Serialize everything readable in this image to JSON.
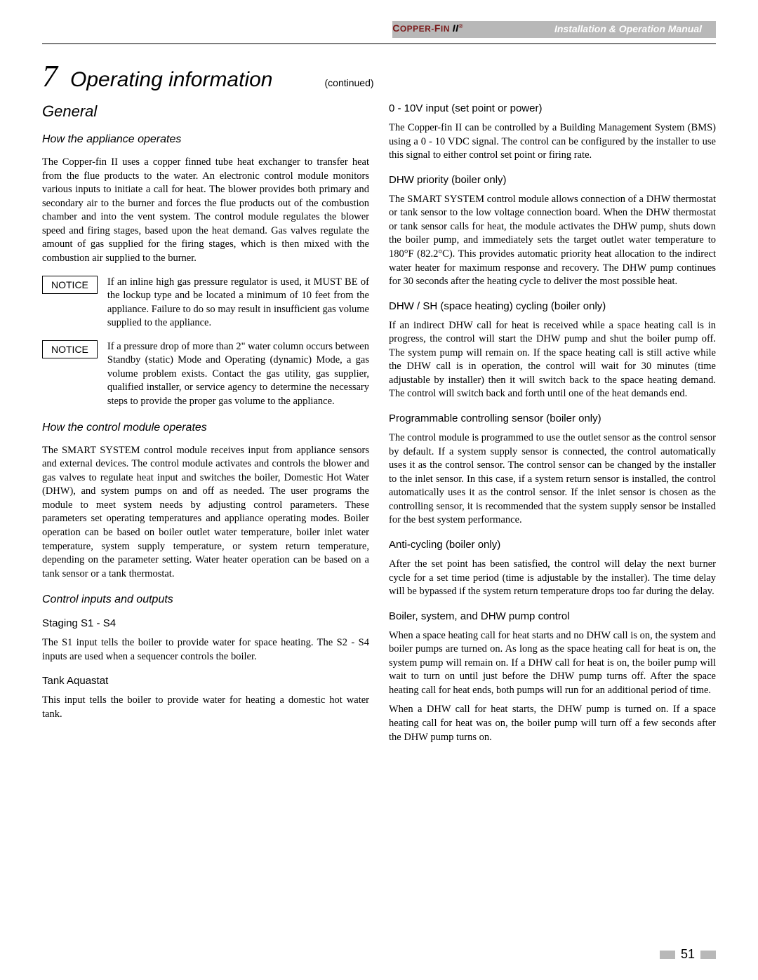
{
  "header": {
    "brand_prefix": "C",
    "brand_text": "OPPER-FIN",
    "brand_suffix": "II",
    "brand_reg": "®",
    "manual_title": "Installation & Operation Manual"
  },
  "chapter": {
    "number": "7",
    "title": "Operating information",
    "continued": "(continued)"
  },
  "left": {
    "general": "General",
    "how_operates": "How the appliance operates",
    "how_operates_body": "The Copper-fin II uses a copper finned tube heat exchanger to transfer heat from the flue products to the water.  An electronic control module monitors various inputs to initiate a call for heat.  The blower provides both primary and secondary air to the burner and forces the flue products out of the combustion chamber and into the vent system.  The control module regulates the blower speed and firing stages, based upon the heat demand.  Gas valves regulate the amount of gas supplied for the firing stages, which is then mixed with the combustion air supplied to the burner.",
    "notice": "NOTICE",
    "notice1": "If an inline high gas pressure regulator is used, it MUST BE of the lockup type and be located a minimum of 10 feet from the appliance.  Failure to do so may result in insufficient gas volume supplied to the appliance.",
    "notice2": "If a pressure drop of more than 2\" water column occurs between Standby (static) Mode and Operating (dynamic) Mode, a gas volume problem exists.  Contact the gas utility, gas supplier, qualified installer, or service agency to determine the necessary steps to provide the proper gas volume to the appliance.",
    "how_control": "How the control module operates",
    "how_control_body": "The SMART SYSTEM control module receives input from appliance sensors and external devices.  The control module activates and controls the blower and gas valves to regulate heat input and switches the boiler, Domestic Hot Water (DHW), and system pumps on and off as needed.  The user programs the module to meet system needs by adjusting control parameters.  These parameters set operating temperatures and appliance operating modes.  Boiler operation can be based on boiler outlet water temperature, boiler inlet water temperature, system supply temperature, or system return temperature, depending on the parameter setting.  Water heater operation can be based on a tank sensor or a tank thermostat.",
    "control_io": "Control inputs and outputs",
    "staging": "Staging S1 - S4",
    "staging_body": "The S1 input tells the boiler to provide water for space heating.  The S2 - S4 inputs are used when a sequencer controls the boiler.",
    "tank": "Tank Aquastat",
    "tank_body": "This input tells the boiler to provide water for heating a domestic hot water tank."
  },
  "right": {
    "v10": "0 - 10V input (set point or power)",
    "v10_body": "The Copper-fin II can be controlled by a Building Management System (BMS) using a 0 - 10 VDC signal.  The control can be configured by the installer to use this signal to either control set point or firing rate.",
    "dhw_priority": "DHW priority (boiler only)",
    "dhw_priority_body": "The SMART SYSTEM control module allows connection of a DHW thermostat or tank sensor to the low voltage connection board.  When the DHW thermostat or tank sensor calls for heat, the module activates the DHW pump, shuts down the boiler pump,  and immediately sets the target outlet water temperature to 180°F (82.2°C).  This provides automatic priority heat allocation to the indirect water heater for maximum response and recovery.  The DHW pump continues for 30 seconds after the heating cycle to deliver the most possible heat.",
    "dhw_sh": "DHW / SH (space heating) cycling (boiler only)",
    "dhw_sh_body": "If an indirect DHW call for heat is received while a space heating call is in progress, the control will start the DHW pump and shut the boiler pump off.  The system pump will remain on.  If the space heating call is still active while the DHW call is in operation, the control will wait for 30 minutes (time adjustable by installer) then it will switch back to the space heating demand.  The control will switch back and forth until one of the heat demands end.",
    "prog_sensor": "Programmable controlling sensor (boiler only)",
    "prog_sensor_body": "The control module is programmed to use the outlet sensor as the control sensor by default.  If a system supply sensor is connected, the control automatically uses it as the control sensor.  The control sensor can be changed by the installer to the inlet sensor.  In this case, if a system return sensor is installed, the control automatically uses it as the control sensor.  If the inlet sensor is chosen as the controlling sensor, it is recommended that the system supply sensor be installed for the best system performance.",
    "anti": "Anti-cycling (boiler only)",
    "anti_body": "After the set point has been satisfied, the control will delay the next burner cycle for a set time period (time is adjustable by the installer).  The time delay will be bypassed if the system return temperature drops too far during the delay.",
    "pump": "Boiler, system, and DHW pump control",
    "pump_body1": "When a space heating call for heat starts and no DHW call is on, the system and boiler pumps are turned on.  As long as the space heating call for heat is on, the system pump will remain on.  If a DHW call for heat is on, the boiler pump will wait to turn on until just before the DHW pump turns off.  After the space heating call for heat ends, both pumps will run for an additional period of time.",
    "pump_body2": "When a DHW call for heat starts, the DHW pump is turned on.  If a space heating call for heat was on, the boiler pump will turn off a few seconds after the DHW pump turns on."
  },
  "page_number": "51"
}
